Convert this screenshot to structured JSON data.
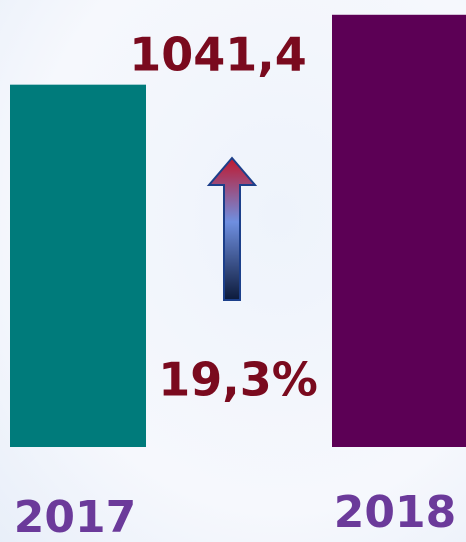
{
  "chart_data": {
    "type": "bar",
    "categories": [
      "2017",
      "2018"
    ],
    "values": [
      873,
      1041.4
    ],
    "value_labels": [
      null,
      "1041,4"
    ],
    "colors": [
      "#007b7b",
      "#5c0055"
    ],
    "ylim": [
      0,
      1077
    ],
    "annotations": [
      "19,3%"
    ]
  }
}
